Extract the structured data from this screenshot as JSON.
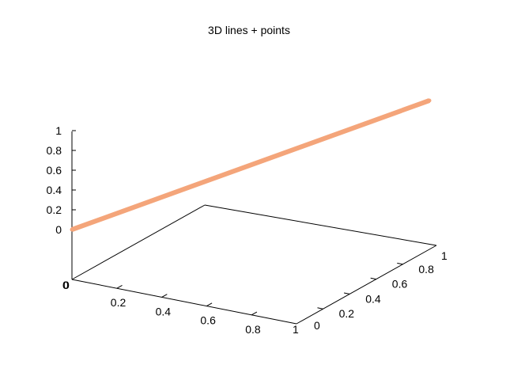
{
  "chart_data": {
    "type": "line",
    "title": "3D lines + points",
    "dimensions": 3,
    "xlabel": "",
    "ylabel": "",
    "zlabel": "",
    "xlim": [
      0,
      1
    ],
    "ylim": [
      0,
      1
    ],
    "zlim": [
      0,
      1
    ],
    "x_ticks": [
      "0",
      "0.2",
      "0.4",
      "0.6",
      "0.8",
      "1"
    ],
    "y_ticks": [
      "0",
      "0.2",
      "0.4",
      "0.6",
      "0.8",
      "1"
    ],
    "z_ticks": [
      "0",
      "0.2",
      "0.4",
      "0.6",
      "0.8",
      "1"
    ],
    "grid": false,
    "legend": "none",
    "series": [
      {
        "color": "#f4a57a",
        "points": [
          {
            "x": 0,
            "y": 0,
            "z": 0
          },
          {
            "x": 1,
            "y": 1,
            "z": 1
          }
        ]
      }
    ]
  }
}
